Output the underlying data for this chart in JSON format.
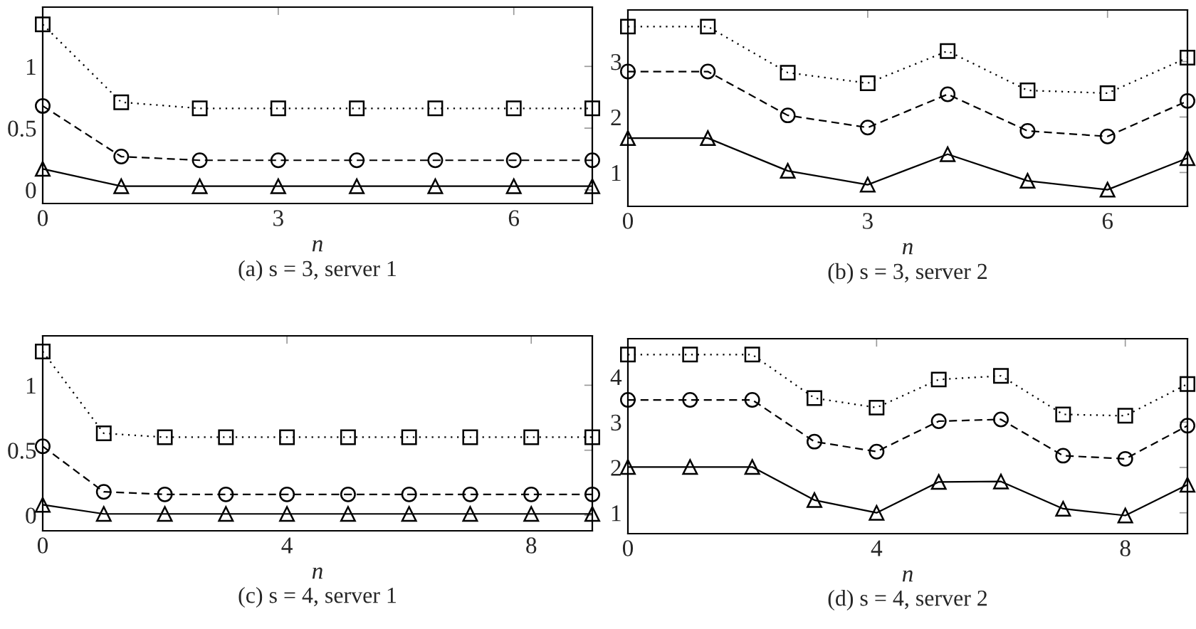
{
  "chart_data": [
    {
      "type": "line",
      "title": "(a) s = 3, server 1",
      "xlabel": "n",
      "xlim": [
        0,
        7
      ],
      "xticks": [
        0,
        3,
        6
      ],
      "ylim": [
        -0.11,
        1.48
      ],
      "yticks": [
        0,
        0.5,
        1
      ],
      "grid": false,
      "legend": false,
      "x": [
        0,
        1,
        2,
        3,
        4,
        5,
        6,
        7
      ],
      "series": [
        {
          "color": "#000000",
          "marker": "square",
          "line_style": "dotted",
          "values": [
            1.34,
            0.71,
            0.66,
            0.66,
            0.66,
            0.66,
            0.66,
            0.66
          ]
        },
        {
          "color": "#000000",
          "marker": "circle",
          "line_style": "dashed",
          "values": [
            0.68,
            0.27,
            0.24,
            0.24,
            0.24,
            0.24,
            0.24,
            0.24
          ]
        },
        {
          "color": "#000000",
          "marker": "triangle",
          "line_style": "solid",
          "values": [
            0.17,
            0.03,
            0.03,
            0.03,
            0.03,
            0.03,
            0.03,
            0.03
          ]
        }
      ]
    },
    {
      "type": "line",
      "title": "(b) s = 3, server 2",
      "xlabel": "n",
      "xlim": [
        0,
        7
      ],
      "xticks": [
        0,
        3,
        6
      ],
      "ylim": [
        0.39,
        3.93
      ],
      "yticks": [
        1,
        2,
        3
      ],
      "grid": false,
      "legend": false,
      "x": [
        0,
        1,
        2,
        3,
        4,
        5,
        6,
        7
      ],
      "series": [
        {
          "color": "#000000",
          "marker": "square",
          "line_style": "dotted",
          "values": [
            3.63,
            3.63,
            2.8,
            2.61,
            3.19,
            2.48,
            2.43,
            3.07
          ]
        },
        {
          "color": "#000000",
          "marker": "circle",
          "line_style": "dashed",
          "values": [
            2.82,
            2.82,
            2.03,
            1.81,
            2.41,
            1.75,
            1.65,
            2.29
          ]
        },
        {
          "color": "#000000",
          "marker": "triangle",
          "line_style": "solid",
          "values": [
            1.62,
            1.62,
            1.03,
            0.78,
            1.33,
            0.85,
            0.69,
            1.26
          ]
        }
      ]
    },
    {
      "type": "line",
      "title": "(c) s = 4, server 1",
      "xlabel": "n",
      "xlim": [
        0,
        9
      ],
      "xticks": [
        0,
        4,
        8
      ],
      "ylim": [
        -0.12,
        1.38
      ],
      "yticks": [
        0,
        0.5,
        1
      ],
      "grid": false,
      "legend": false,
      "x": [
        0,
        1,
        2,
        3,
        4,
        5,
        6,
        7,
        8,
        9
      ],
      "series": [
        {
          "color": "#000000",
          "marker": "square",
          "line_style": "dotted",
          "values": [
            1.26,
            0.63,
            0.6,
            0.6,
            0.6,
            0.6,
            0.6,
            0.6,
            0.6,
            0.6
          ]
        },
        {
          "color": "#000000",
          "marker": "circle",
          "line_style": "dashed",
          "values": [
            0.53,
            0.18,
            0.16,
            0.16,
            0.16,
            0.16,
            0.16,
            0.16,
            0.16,
            0.16
          ]
        },
        {
          "color": "#000000",
          "marker": "triangle",
          "line_style": "solid",
          "values": [
            0.08,
            0.01,
            0.01,
            0.01,
            0.01,
            0.01,
            0.01,
            0.01,
            0.01,
            0.01
          ]
        }
      ]
    },
    {
      "type": "line",
      "title": "(d) s = 4, server 2",
      "xlabel": "n",
      "xlim": [
        0,
        9
      ],
      "xticks": [
        0,
        4,
        8
      ],
      "ylim": [
        0.54,
        4.84
      ],
      "yticks": [
        1,
        2,
        3,
        4
      ],
      "grid": false,
      "legend": false,
      "x": [
        0,
        1,
        2,
        3,
        4,
        5,
        6,
        7,
        8,
        9
      ],
      "series": [
        {
          "color": "#000000",
          "marker": "square",
          "line_style": "dotted",
          "values": [
            4.49,
            4.49,
            4.49,
            3.53,
            3.32,
            3.94,
            4.02,
            3.17,
            3.14,
            3.84
          ]
        },
        {
          "color": "#000000",
          "marker": "circle",
          "line_style": "dashed",
          "values": [
            3.49,
            3.49,
            3.49,
            2.57,
            2.35,
            3.02,
            3.06,
            2.26,
            2.19,
            2.92
          ]
        },
        {
          "color": "#000000",
          "marker": "triangle",
          "line_style": "solid",
          "values": [
            2.01,
            2.01,
            2.01,
            1.28,
            1.0,
            1.68,
            1.69,
            1.09,
            0.94,
            1.62
          ]
        }
      ]
    }
  ]
}
